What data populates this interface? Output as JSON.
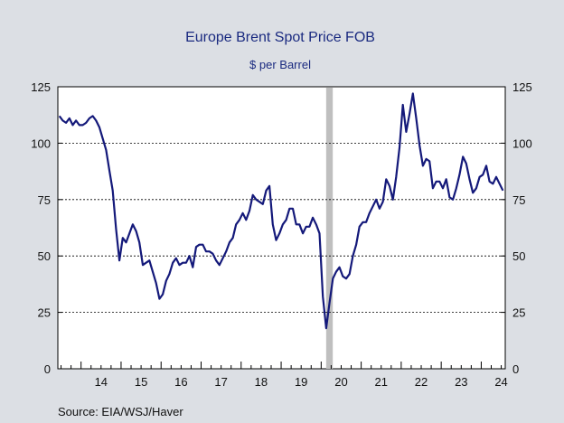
{
  "title": "Europe Brent Spot Price FOB",
  "subtitle": "$ per Barrel",
  "source": "Source:  EIA/WSJ/Haver",
  "colors": {
    "background": "#dcdfe4",
    "plot_area": "#ffffff",
    "line": "#14197a",
    "title": "#1a2a80",
    "recession_band": "#bfbfbf"
  },
  "chart_data": {
    "type": "line",
    "title": "Europe Brent Spot Price FOB",
    "subtitle": "$ per Barrel",
    "ylim": [
      0,
      125
    ],
    "xlim": [
      2013.42,
      2024.6
    ],
    "y_ticks_left": [
      0,
      25,
      50,
      75,
      100,
      125
    ],
    "y_ticks_right": [
      0,
      25,
      50,
      75,
      100,
      125
    ],
    "x_tick_labels": [
      "14",
      "15",
      "16",
      "17",
      "18",
      "19",
      "20",
      "21",
      "22",
      "23",
      "24"
    ],
    "x_tick_label_centers": [
      2014.5,
      2015.5,
      2016.5,
      2017.5,
      2018.5,
      2019.5,
      2020.5,
      2021.5,
      2022.5,
      2023.5,
      2024.5
    ],
    "x_year_boundaries": [
      2014,
      2015,
      2016,
      2017,
      2018,
      2019,
      2020,
      2021,
      2022,
      2023,
      2024
    ],
    "grid": "horizontal dashed",
    "shaded_period": {
      "start": 2020.125,
      "end": 2020.29
    },
    "series": [
      {
        "x": [
          2013.458,
          2013.542,
          2013.625,
          2013.708,
          2013.792,
          2013.875,
          2013.958,
          2014.042,
          2014.125,
          2014.208,
          2014.292,
          2014.375,
          2014.458,
          2014.542,
          2014.625,
          2014.708,
          2014.792,
          2014.875,
          2014.958,
          2015.042,
          2015.125,
          2015.208,
          2015.292,
          2015.375,
          2015.458,
          2015.542,
          2015.625,
          2015.708,
          2015.792,
          2015.875,
          2015.958,
          2016.042,
          2016.125,
          2016.208,
          2016.292,
          2016.375,
          2016.458,
          2016.542,
          2016.625,
          2016.708,
          2016.792,
          2016.875,
          2016.958,
          2017.042,
          2017.125,
          2017.208,
          2017.292,
          2017.375,
          2017.458,
          2017.542,
          2017.625,
          2017.708,
          2017.792,
          2017.875,
          2017.958,
          2018.042,
          2018.125,
          2018.208,
          2018.292,
          2018.375,
          2018.458,
          2018.542,
          2018.625,
          2018.708,
          2018.792,
          2018.875,
          2018.958,
          2019.042,
          2019.125,
          2019.208,
          2019.292,
          2019.375,
          2019.458,
          2019.542,
          2019.625,
          2019.708,
          2019.792,
          2019.875,
          2019.958,
          2020.042,
          2020.125,
          2020.208,
          2020.292,
          2020.375,
          2020.458,
          2020.542,
          2020.625,
          2020.708,
          2020.792,
          2020.875,
          2020.958,
          2021.042,
          2021.125,
          2021.208,
          2021.292,
          2021.375,
          2021.458,
          2021.542,
          2021.625,
          2021.708,
          2021.792,
          2021.875,
          2021.958,
          2022.042,
          2022.125,
          2022.208,
          2022.292,
          2022.375,
          2022.458,
          2022.542,
          2022.625,
          2022.708,
          2022.792,
          2022.875,
          2022.958,
          2023.042,
          2023.125,
          2023.208,
          2023.292,
          2023.375,
          2023.458,
          2023.542,
          2023.625,
          2023.708,
          2023.792,
          2023.875,
          2023.958,
          2024.042,
          2024.125,
          2024.208,
          2024.292,
          2024.375,
          2024.458,
          2024.542
        ],
        "values": [
          112,
          110,
          109,
          111,
          108,
          110,
          108,
          108,
          109,
          111,
          112,
          110,
          107,
          102,
          97,
          88,
          79,
          62,
          48,
          58,
          56,
          60,
          64,
          61,
          56,
          46,
          47,
          48,
          43,
          38,
          31,
          33,
          39,
          42,
          47,
          49,
          46,
          47,
          47,
          50,
          45,
          54,
          55,
          55,
          52,
          52,
          51,
          48,
          46,
          49,
          52,
          56,
          58,
          64,
          66,
          69,
          66,
          70,
          77,
          75,
          74,
          73,
          79,
          81,
          64,
          57,
          60,
          64,
          66,
          71,
          71,
          64,
          64,
          60,
          63,
          63,
          67,
          64,
          60,
          32,
          18,
          29,
          40,
          43,
          45,
          41,
          40,
          42,
          50,
          55,
          63,
          65,
          65,
          69,
          72,
          75,
          71,
          74,
          84,
          81,
          75,
          85,
          98,
          117,
          105,
          113,
          122,
          111,
          99,
          90,
          93,
          92,
          80,
          83,
          83,
          80,
          84,
          76,
          75,
          80,
          86,
          94,
          91,
          84,
          78,
          80,
          85,
          86,
          90,
          83,
          82,
          85,
          82,
          79
        ],
        "color": "#14197a"
      }
    ]
  }
}
